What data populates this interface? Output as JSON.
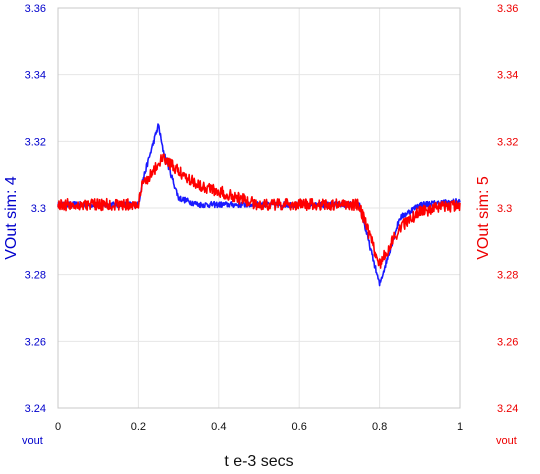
{
  "chart_data": {
    "type": "line",
    "x": [
      0,
      0.2,
      0.21,
      0.25,
      0.26,
      0.3,
      0.35,
      0.4,
      0.45,
      0.5,
      0.6,
      0.7,
      0.75,
      0.76,
      0.8,
      0.85,
      0.9,
      1.0
    ],
    "xlabel": "t e-3 secs",
    "xlim": [
      0,
      1
    ],
    "xticks": [
      "0",
      "0.2",
      "0.4",
      "0.6",
      "0.8",
      "1"
    ],
    "y_left": {
      "label": "VOut sim: 4",
      "unit_label": "vout",
      "ylim": [
        3.24,
        3.36
      ],
      "ticks": [
        "3.24",
        "3.26",
        "3.28",
        "3.3",
        "3.32",
        "3.34",
        "3.36"
      ],
      "color": "#0000cc"
    },
    "y_right": {
      "label": "VOut sim: 5",
      "unit_label": "vout",
      "ylim": [
        3.24,
        3.36
      ],
      "ticks": [
        "3.24",
        "3.26",
        "3.28",
        "3.3",
        "3.32",
        "3.34",
        "3.36"
      ],
      "color": "#ee0000"
    },
    "series": [
      {
        "name": "VOut sim: 4",
        "axis": "left",
        "color": "#1a1aff",
        "values": [
          3.301,
          3.301,
          3.308,
          3.325,
          3.318,
          3.303,
          3.301,
          3.301,
          3.301,
          3.301,
          3.301,
          3.301,
          3.301,
          3.296,
          3.277,
          3.297,
          3.301,
          3.302
        ]
      },
      {
        "name": "VOut sim: 5",
        "axis": "right",
        "color": "#ff0000",
        "values": [
          3.301,
          3.301,
          3.307,
          3.313,
          3.315,
          3.311,
          3.307,
          3.305,
          3.303,
          3.301,
          3.301,
          3.301,
          3.301,
          3.297,
          3.283,
          3.294,
          3.299,
          3.301
        ]
      }
    ],
    "grid": true,
    "legend": "none"
  }
}
